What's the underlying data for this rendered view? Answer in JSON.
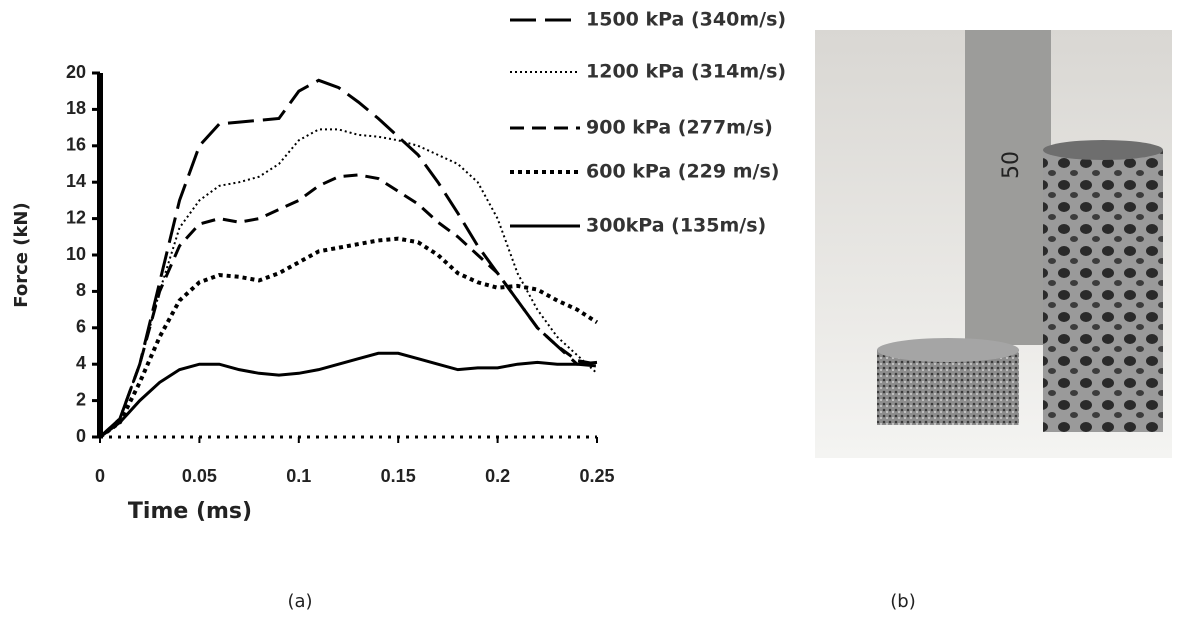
{
  "chart_data": {
    "type": "line",
    "x_label": "Time (ms)",
    "y_label": "Force (kN)",
    "xlim": [
      0,
      0.25
    ],
    "xticks": [
      0,
      0.05,
      0.1,
      0.15,
      0.2,
      0.25
    ],
    "ylim": [
      0,
      20
    ],
    "yticks": [
      0,
      2,
      4,
      6,
      8,
      10,
      12,
      14,
      16,
      18,
      20
    ],
    "grid": false,
    "legend": "top-right",
    "x": [
      0,
      0.01,
      0.02,
      0.03,
      0.04,
      0.05,
      0.06,
      0.07,
      0.08,
      0.09,
      0.1,
      0.11,
      0.12,
      0.13,
      0.14,
      0.15,
      0.16,
      0.17,
      0.18,
      0.19,
      0.2,
      0.21,
      0.22,
      0.23,
      0.24,
      0.25
    ],
    "series": [
      {
        "name": "1500 kPa (340m/s)",
        "color": "#000000",
        "dash": "26 9",
        "width": 3,
        "values": [
          0,
          1,
          4,
          8.5,
          13,
          16,
          17.2,
          17.3,
          17.4,
          17.5,
          19,
          19.6,
          19.2,
          18.4,
          17.5,
          16.5,
          15.5,
          14,
          12.3,
          10.5,
          9,
          7.5,
          6,
          5,
          4,
          3.9
        ]
      },
      {
        "name": "1200 kPa (314m/s)",
        "color": "#000000",
        "dash": "2 3",
        "width": 2,
        "values": [
          0,
          1,
          4,
          8,
          11.5,
          13,
          13.8,
          14,
          14.3,
          15,
          16.3,
          16.9,
          16.9,
          16.6,
          16.5,
          16.3,
          16,
          15.5,
          15,
          14,
          12,
          9,
          7,
          5.5,
          4.5,
          3.5
        ]
      },
      {
        "name": "900 kPa (277m/s)",
        "color": "#000000",
        "dash": "14 8",
        "width": 3,
        "values": [
          0,
          1,
          4,
          8,
          10.5,
          11.7,
          12,
          11.8,
          12,
          12.5,
          13,
          13.8,
          14.3,
          14.4,
          14.2,
          13.5,
          12.8,
          11.8,
          11,
          10,
          9,
          7.5,
          6,
          5,
          4.2,
          4
        ]
      },
      {
        "name": "600 kPa (229 m/s)",
        "color": "#000000",
        "dash": "4 4",
        "width": 4,
        "values": [
          0,
          0.8,
          3,
          5.5,
          7.5,
          8.5,
          8.9,
          8.8,
          8.6,
          9,
          9.6,
          10.2,
          10.4,
          10.6,
          10.8,
          10.9,
          10.7,
          10,
          9,
          8.5,
          8.2,
          8.3,
          8.1,
          7.5,
          7,
          6.3
        ]
      },
      {
        "name": "300kPa (135m/s)",
        "color": "#000000",
        "dash": "none",
        "width": 3,
        "values": [
          0,
          0.8,
          2,
          3,
          3.7,
          4,
          4,
          3.7,
          3.5,
          3.4,
          3.5,
          3.7,
          4,
          4.3,
          4.6,
          4.6,
          4.3,
          4,
          3.7,
          3.8,
          3.8,
          4,
          4.1,
          4,
          4,
          4.1
        ]
      }
    ]
  },
  "panels": {
    "a": "(a)",
    "b": "(b)"
  },
  "photo": {
    "ruler_label": "50"
  }
}
